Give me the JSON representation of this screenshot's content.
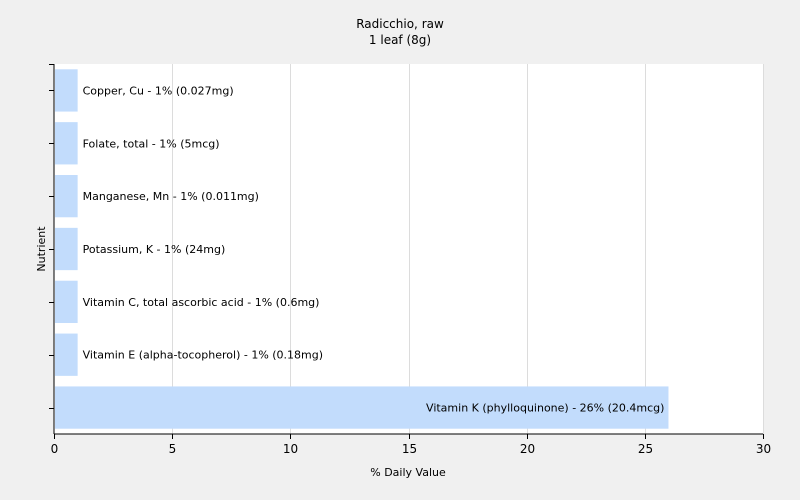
{
  "chart_data": {
    "type": "bar",
    "orientation": "horizontal",
    "title": "Radicchio, raw",
    "subtitle": "1 leaf (8g)",
    "xlabel": "% Daily Value",
    "ylabel": "Nutrient",
    "xlim": [
      0,
      30
    ],
    "xticks": [
      0,
      5,
      10,
      15,
      20,
      25,
      30
    ],
    "grid": true,
    "colors": {
      "bar": "#c2dcfc",
      "plot_bg": "#ffffff",
      "page_bg": "#f0f0f0",
      "grid": "#dcdcdc"
    },
    "categories": [
      "Copper, Cu",
      "Folate, total",
      "Manganese, Mn",
      "Potassium, K",
      "Vitamin C, total ascorbic acid",
      "Vitamin E (alpha-tocopherol)",
      "Vitamin K (phylloquinone)"
    ],
    "values": [
      1,
      1,
      1,
      1,
      1,
      1,
      26
    ],
    "labels": [
      "Copper, Cu - 1% (0.027mg)",
      "Folate, total - 1% (5mcg)",
      "Manganese, Mn - 1% (0.011mg)",
      "Potassium, K - 1% (24mg)",
      "Vitamin C, total ascorbic acid - 1% (0.6mg)",
      "Vitamin E (alpha-tocopherol) - 1% (0.18mg)",
      "Vitamin K (phylloquinone) - 26% (20.4mcg)"
    ]
  }
}
